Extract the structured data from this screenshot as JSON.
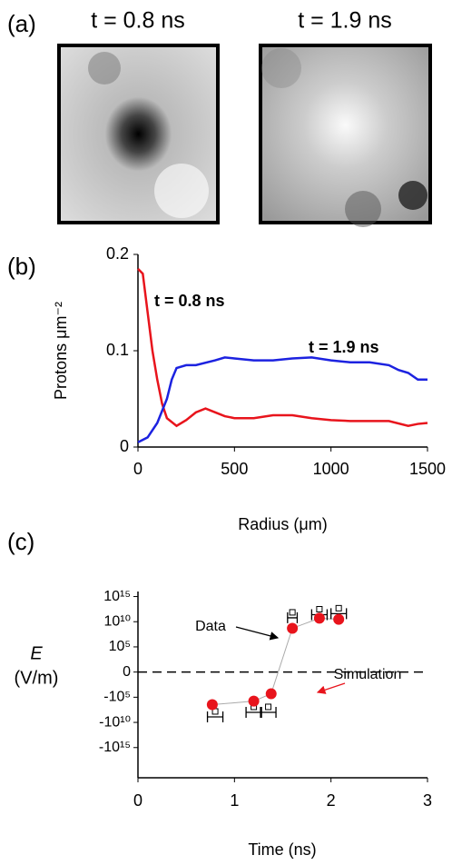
{
  "panel_labels": [
    "(a)",
    "(b)",
    "(c)"
  ],
  "images": [
    {
      "title": "t = 0.8 ns",
      "color": "#e8141c"
    },
    {
      "title": "t = 1.9 ns",
      "color": "#1c22e0"
    }
  ],
  "chart_data": [
    {
      "type": "line",
      "xlabel": "Radius (μm)",
      "ylabel": "Protons μm⁻²",
      "xlim": [
        0,
        1500
      ],
      "xticks": [
        0,
        500,
        1000,
        1500
      ],
      "ylim": [
        0,
        0.2
      ],
      "yticks": [
        0,
        0.1,
        0.2
      ],
      "series": [
        {
          "name": "t = 0.8 ns",
          "color": "#e8141c",
          "x": [
            0,
            25,
            50,
            75,
            100,
            125,
            150,
            200,
            250,
            300,
            350,
            400,
            450,
            500,
            600,
            700,
            800,
            900,
            1000,
            1100,
            1200,
            1300,
            1400,
            1450,
            1500
          ],
          "values": [
            0.185,
            0.18,
            0.14,
            0.1,
            0.07,
            0.045,
            0.03,
            0.022,
            0.028,
            0.036,
            0.04,
            0.036,
            0.032,
            0.03,
            0.03,
            0.033,
            0.033,
            0.03,
            0.028,
            0.027,
            0.027,
            0.027,
            0.022,
            0.024,
            0.025
          ]
        },
        {
          "name": "t = 1.9 ns",
          "color": "#1c22e0",
          "x": [
            0,
            50,
            100,
            150,
            175,
            200,
            250,
            300,
            400,
            450,
            500,
            600,
            700,
            800,
            900,
            1000,
            1100,
            1200,
            1300,
            1350,
            1400,
            1450,
            1500
          ],
          "values": [
            0.005,
            0.01,
            0.025,
            0.05,
            0.07,
            0.082,
            0.085,
            0.085,
            0.09,
            0.093,
            0.092,
            0.09,
            0.09,
            0.092,
            0.093,
            0.09,
            0.088,
            0.088,
            0.085,
            0.08,
            0.077,
            0.07,
            0.07
          ]
        }
      ]
    },
    {
      "type": "scatter",
      "yscale": "symlog",
      "xlabel": "Time (ns)",
      "ylabel": "E",
      "ylabel_unit": "(V/m)",
      "xlim": [
        0,
        3
      ],
      "xticks": [
        0,
        1,
        2,
        3
      ],
      "ylim": [
        -1e+21,
        1e+16
      ],
      "yticks": [
        {
          "value": 1000000000000000.0,
          "label": "10¹⁵"
        },
        {
          "value": 10000000000.0,
          "label": "10¹⁰"
        },
        {
          "value": 100000.0,
          "label": "10⁵"
        },
        0,
        {
          "value": -100000.0,
          "label": "-10⁵"
        },
        {
          "value": -10000000000.0,
          "label": "-10¹⁰"
        },
        {
          "value": -1000000000000000.0,
          "label": "-10¹⁵"
        }
      ],
      "series": [
        {
          "name": "Data",
          "color": "#000000",
          "x": [
            0.8,
            1.2,
            1.35,
            1.6,
            1.88,
            2.08
          ],
          "values": [
            -800000000.0,
            -100000000.0,
            -100000000.0,
            60000000000.0,
            250000000000.0,
            400000000000.0
          ],
          "xerr": [
            0.08,
            0.08,
            0.08,
            0.05,
            0.08,
            0.08
          ]
        },
        {
          "name": "Simulation",
          "color": "#e8141c",
          "x": [
            0.77,
            1.2,
            1.38,
            1.6,
            1.88,
            2.08
          ],
          "values": [
            -3000000.0,
            -600000.0,
            -20000.0,
            500000000.0,
            50000000000.0,
            30000000000.0
          ]
        }
      ]
    }
  ]
}
